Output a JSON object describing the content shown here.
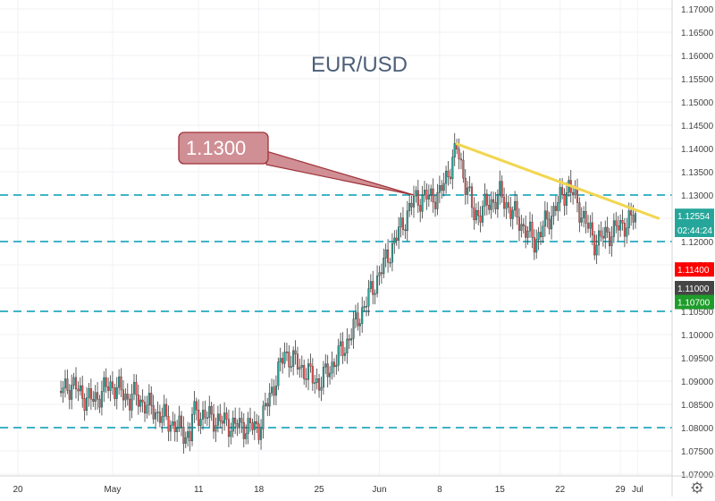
{
  "chart_data": {
    "type": "candlestick",
    "title": "EUR/USD",
    "ylim": [
      1.068,
      1.1705
    ],
    "y_ticks": [
      "1.17000",
      "1.16500",
      "1.16000",
      "1.15500",
      "1.15000",
      "1.14500",
      "1.14000",
      "1.13500",
      "1.13000",
      "1.12500",
      "1.12000",
      "1.11500",
      "1.11000",
      "1.10500",
      "1.10000",
      "1.09500",
      "1.09000",
      "1.08500",
      "1.08000",
      "1.07500",
      "1.07000"
    ],
    "x_ticks": [
      {
        "label": "20",
        "day": 0
      },
      {
        "label": "May",
        "day": 11
      },
      {
        "label": "11",
        "day": 21
      },
      {
        "label": "18",
        "day": 28
      },
      {
        "label": "25",
        "day": 35
      },
      {
        "label": "Jun",
        "day": 42
      },
      {
        "label": "8",
        "day": 49
      },
      {
        "label": "15",
        "day": 56
      },
      {
        "label": "22",
        "day": 63
      },
      {
        "label": "29",
        "day": 70
      },
      {
        "label": "Jul",
        "day": 72
      }
    ],
    "key_points": [
      {
        "date": "Apr 17",
        "close": 1.0875
      },
      {
        "date": "Apr 24",
        "close": 1.078
      },
      {
        "date": "May 1",
        "close": 1.0985
      },
      {
        "date": "May 5",
        "close": 1.083
      },
      {
        "date": "May 11",
        "close": 1.083
      },
      {
        "date": "May 15",
        "close": 1.0805
      },
      {
        "date": "May 18",
        "close": 1.08
      },
      {
        "date": "May 21",
        "close": 1.096
      },
      {
        "date": "May 25",
        "close": 1.0895
      },
      {
        "date": "May 28",
        "close": 1.0975
      },
      {
        "date": "Jun 1",
        "close": 1.113
      },
      {
        "date": "Jun 5",
        "close": 1.129
      },
      {
        "date": "Jun 8",
        "close": 1.13
      },
      {
        "date": "Jun 10",
        "close": 1.14
      },
      {
        "date": "Jun 12",
        "close": 1.1255
      },
      {
        "date": "Jun 15",
        "close": 1.13
      },
      {
        "date": "Jun 19",
        "close": 1.12
      },
      {
        "date": "Jun 23",
        "close": 1.132
      },
      {
        "date": "Jun 26",
        "close": 1.12
      },
      {
        "date": "Jul 1",
        "close": 1.1255
      }
    ],
    "horizontal_levels": [
      1.13,
      1.12,
      1.105,
      1.08
    ],
    "trendline": {
      "from": {
        "date": "Jun 10",
        "price": 1.141
      },
      "to": {
        "date": "Jul 3",
        "price": 1.125
      }
    },
    "callout": {
      "label": "1.1300",
      "price": 1.13
    },
    "price_tags": [
      {
        "label": "1.12554",
        "price": 1.12554,
        "color": "#26a69a"
      },
      {
        "label": "02:44:24",
        "price": 1.1225,
        "color": "#26a69a"
      },
      {
        "label": "1.11400",
        "price": 1.114,
        "color": "#ff0000"
      },
      {
        "label": "1.11000",
        "price": 1.11,
        "color": "#454545"
      },
      {
        "label": "1.10700",
        "price": 1.107,
        "color": "#1e9c2a"
      }
    ],
    "grid": true,
    "colors": {
      "up": "#26a69a",
      "down": "#ef5350",
      "level": "#3fb4c6",
      "trend": "#f2d64f",
      "callout_fill": "#d08f94",
      "callout_stroke": "#9e3238"
    }
  }
}
